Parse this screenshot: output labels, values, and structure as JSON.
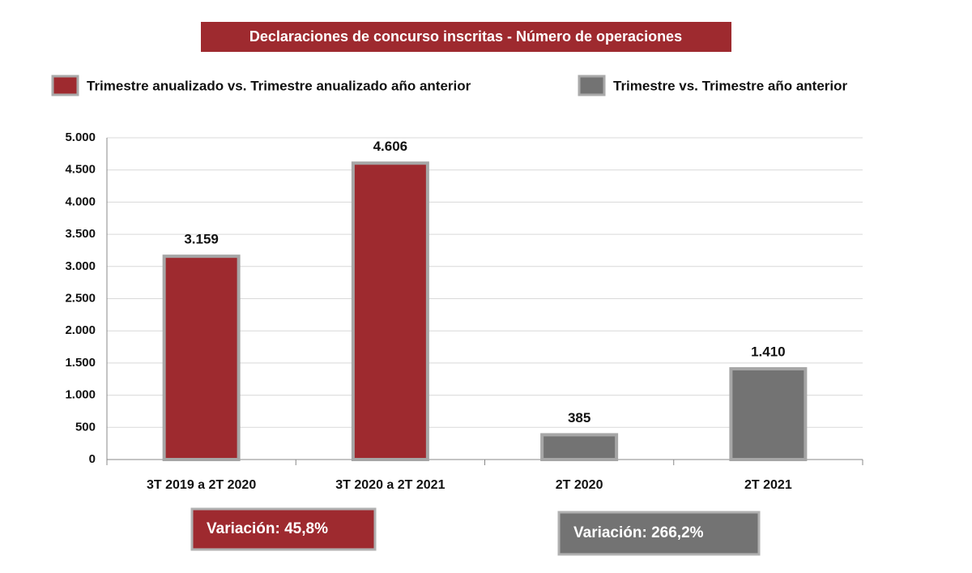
{
  "chart_data": {
    "type": "bar",
    "title": "Declaraciones de concurso inscritas - Número de operaciones",
    "categories": [
      "3T 2019 a 2T 2020",
      "3T 2020 a 2T 2021",
      "2T 2020",
      "2T 2021"
    ],
    "series": [
      {
        "name": "Trimestre anualizado vs. Trimestre anualizado año anterior",
        "color": "#9e2a2f",
        "values": [
          3159,
          4606,
          null,
          null
        ],
        "value_labels": [
          "3.159",
          "4.606",
          null,
          null
        ]
      },
      {
        "name": "Trimestre vs. Trimestre año anterior",
        "color": "#737373",
        "values": [
          null,
          null,
          385,
          1410
        ],
        "value_labels": [
          null,
          null,
          "385",
          "1.410"
        ]
      }
    ],
    "ylim": [
      0,
      5000
    ],
    "yticks": [
      0,
      500,
      {
        "value": 1000,
        "label": "1.000"
      },
      {
        "value": 1500,
        "label": "1.500"
      },
      {
        "value": 2000,
        "label": "2.000"
      },
      {
        "value": 2500,
        "label": "2.500"
      },
      {
        "value": 3000,
        "label": "3.000"
      },
      {
        "value": 3500,
        "label": "3.500"
      },
      {
        "value": 4000,
        "label": "4.000"
      },
      {
        "value": 4500,
        "label": "4.500"
      },
      {
        "value": 5000,
        "label": "5.000"
      }
    ],
    "grid": true,
    "legend": "top",
    "annotations": [
      {
        "text": "Variación:  45,8%",
        "color": "#9e2a2f"
      },
      {
        "text": "Variación: 266,2%",
        "color": "#737373"
      }
    ]
  }
}
